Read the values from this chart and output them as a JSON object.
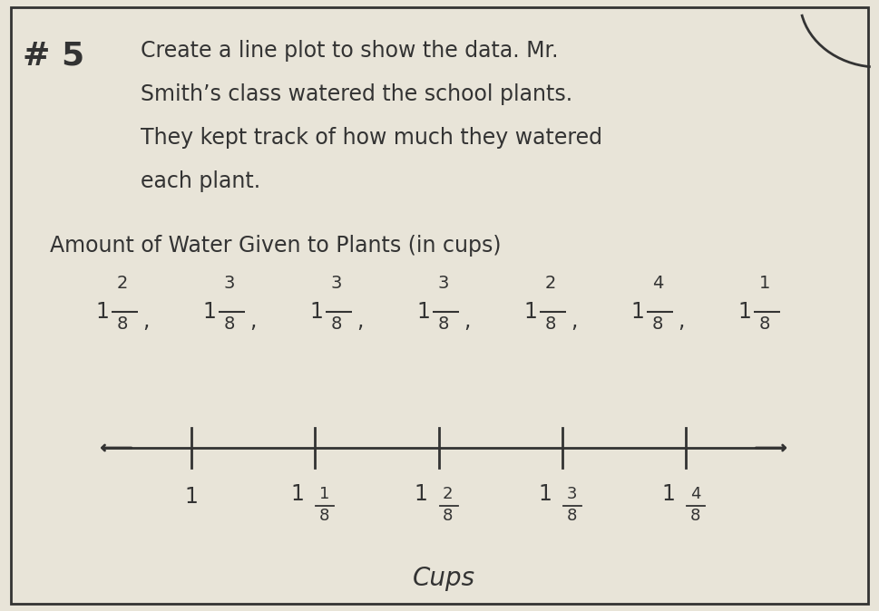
{
  "background_color": "#e8e4d8",
  "border_color": "#333333",
  "title_number": "# 5",
  "problem_text_lines": [
    "Create a line plot to show the data. Mr.",
    "Smith’s class watered the school plants.",
    "They kept track of how much they watered",
    "each plant."
  ],
  "data_title": "Amount of Water Given to Plants (in cups)",
  "numerators": [
    "2",
    "3",
    "3",
    "3",
    "2",
    "4",
    "1"
  ],
  "denominators": [
    "8",
    "8",
    "8",
    "8",
    "8",
    "8",
    "8"
  ],
  "x_axis_label": "Cups",
  "tick_positions": [
    1.0,
    1.125,
    1.25,
    1.375,
    1.5
  ],
  "tick_label_nums": [
    "",
    "1",
    "2",
    "3",
    "4"
  ],
  "tick_label_dens": [
    "",
    "8",
    "8",
    "8",
    "8"
  ],
  "tick_label_whole": [
    "1",
    "1",
    "1",
    "1",
    "1"
  ],
  "x_min": 0.88,
  "x_max": 1.65,
  "line_x_start": 0.91,
  "line_x_end": 1.6,
  "arrow_color": "#333333",
  "font_color": "#333333",
  "line_y": 2.0,
  "ylim_min": -1.5,
  "ylim_max": 5.0
}
